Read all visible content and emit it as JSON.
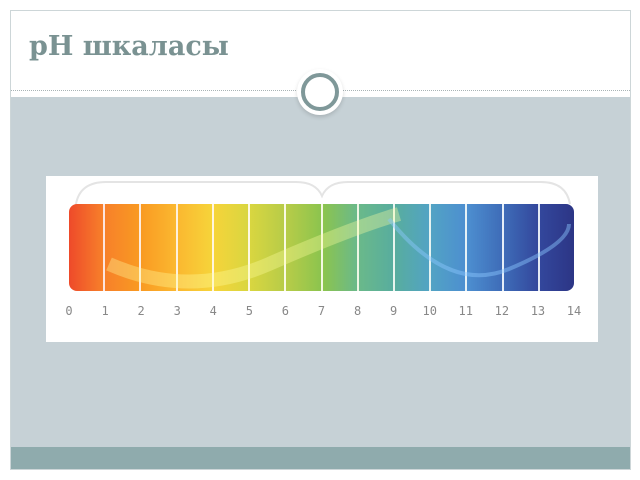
{
  "slide": {
    "title": "pH шкаласы"
  },
  "scale": {
    "labels": [
      "0",
      "1",
      "2",
      "3",
      "4",
      "5",
      "6",
      "7",
      "8",
      "9",
      "10",
      "11",
      "12",
      "13",
      "14"
    ],
    "colors": [
      "#ee4a2a",
      "#f7802a",
      "#f99a22",
      "#fbb830",
      "#f6d43a",
      "#d9d640",
      "#b8cc48",
      "#8cc44e",
      "#6ab98a",
      "#58ad9e",
      "#52a3c4",
      "#4d8fd0",
      "#3e6cb8",
      "#33479c",
      "#2c3585"
    ]
  }
}
